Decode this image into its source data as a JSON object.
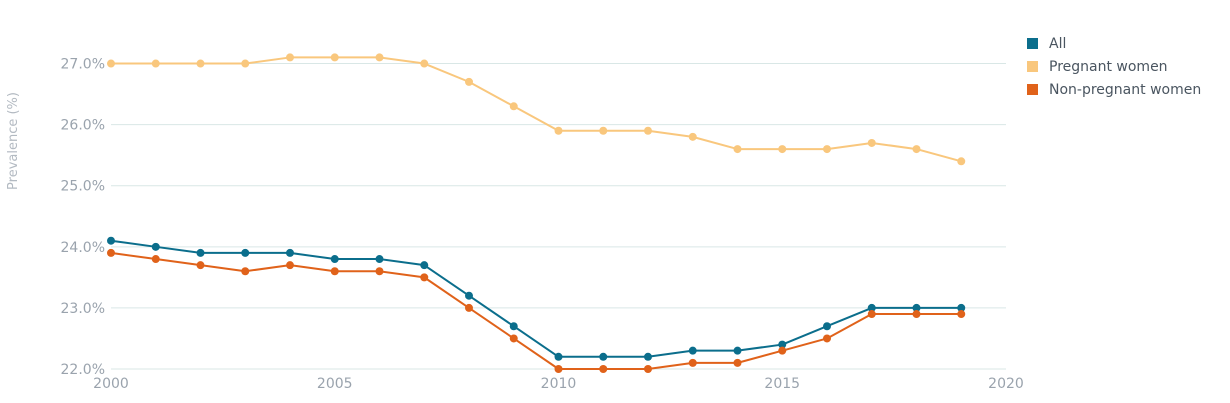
{
  "chart_data": {
    "type": "line",
    "title": "",
    "xlabel": "",
    "ylabel": "Prevalence (%)",
    "xlim": [
      2000,
      2020
    ],
    "ylim": [
      22.0,
      27.5
    ],
    "x_ticks": [
      2000,
      2005,
      2010,
      2015,
      2020
    ],
    "y_ticks": [
      22.0,
      23.0,
      24.0,
      25.0,
      26.0,
      27.0
    ],
    "y_tick_format": "%",
    "grid": true,
    "legend_position": "top-right",
    "x": [
      2000,
      2001,
      2002,
      2003,
      2004,
      2005,
      2006,
      2007,
      2008,
      2009,
      2010,
      2011,
      2012,
      2013,
      2014,
      2015,
      2016,
      2017,
      2018,
      2019
    ],
    "series": [
      {
        "name": "All",
        "color": "#0b6e8c",
        "values": [
          24.1,
          24.0,
          23.9,
          23.9,
          23.9,
          23.8,
          23.8,
          23.7,
          23.2,
          22.7,
          22.2,
          22.2,
          22.2,
          22.3,
          22.3,
          22.4,
          22.7,
          23.0,
          23.0,
          23.0
        ]
      },
      {
        "name": "Pregnant women",
        "color": "#f9c77d",
        "values": [
          27.0,
          27.0,
          27.0,
          27.0,
          27.1,
          27.1,
          27.1,
          27.0,
          26.7,
          26.3,
          25.9,
          25.9,
          25.9,
          25.8,
          25.6,
          25.6,
          25.6,
          25.7,
          25.6,
          25.4
        ]
      },
      {
        "name": "Non-pregnant women",
        "color": "#e0621a",
        "values": [
          23.9,
          23.8,
          23.7,
          23.6,
          23.7,
          23.6,
          23.6,
          23.5,
          23.0,
          22.5,
          22.0,
          22.0,
          22.0,
          22.1,
          22.1,
          22.3,
          22.5,
          22.9,
          22.9,
          22.9
        ]
      }
    ]
  }
}
